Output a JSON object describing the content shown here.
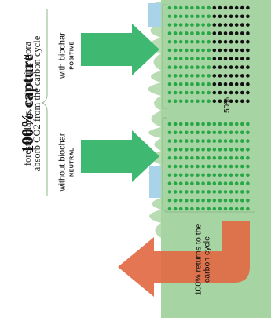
{
  "title": "100% capture",
  "subtitle_lines": [
    "forests, plants, and marine flora",
    "absorb CO2 from the carbon cycle"
  ],
  "with_label": "with biochar",
  "with_tag": "POSITIVE",
  "without_label": "without biochar",
  "without_tag": "NEUTRAL",
  "half_label": "50%",
  "return_lines": [
    "100% returns to the",
    "carbon cycle"
  ],
  "colors": {
    "land": "#a7d4a3",
    "foliage": "#b9dcb5",
    "water": "#a8d3e8",
    "green_arrow": "#3fb872",
    "green_dot": "#28a748",
    "black_dot": "#111111",
    "orange_arrow": "#e26a45",
    "brace": "#8fb78a"
  },
  "icons": [
    "tree-canopy",
    "dot-grid",
    "arrow-right",
    "arrow-left",
    "curly-brace"
  ]
}
